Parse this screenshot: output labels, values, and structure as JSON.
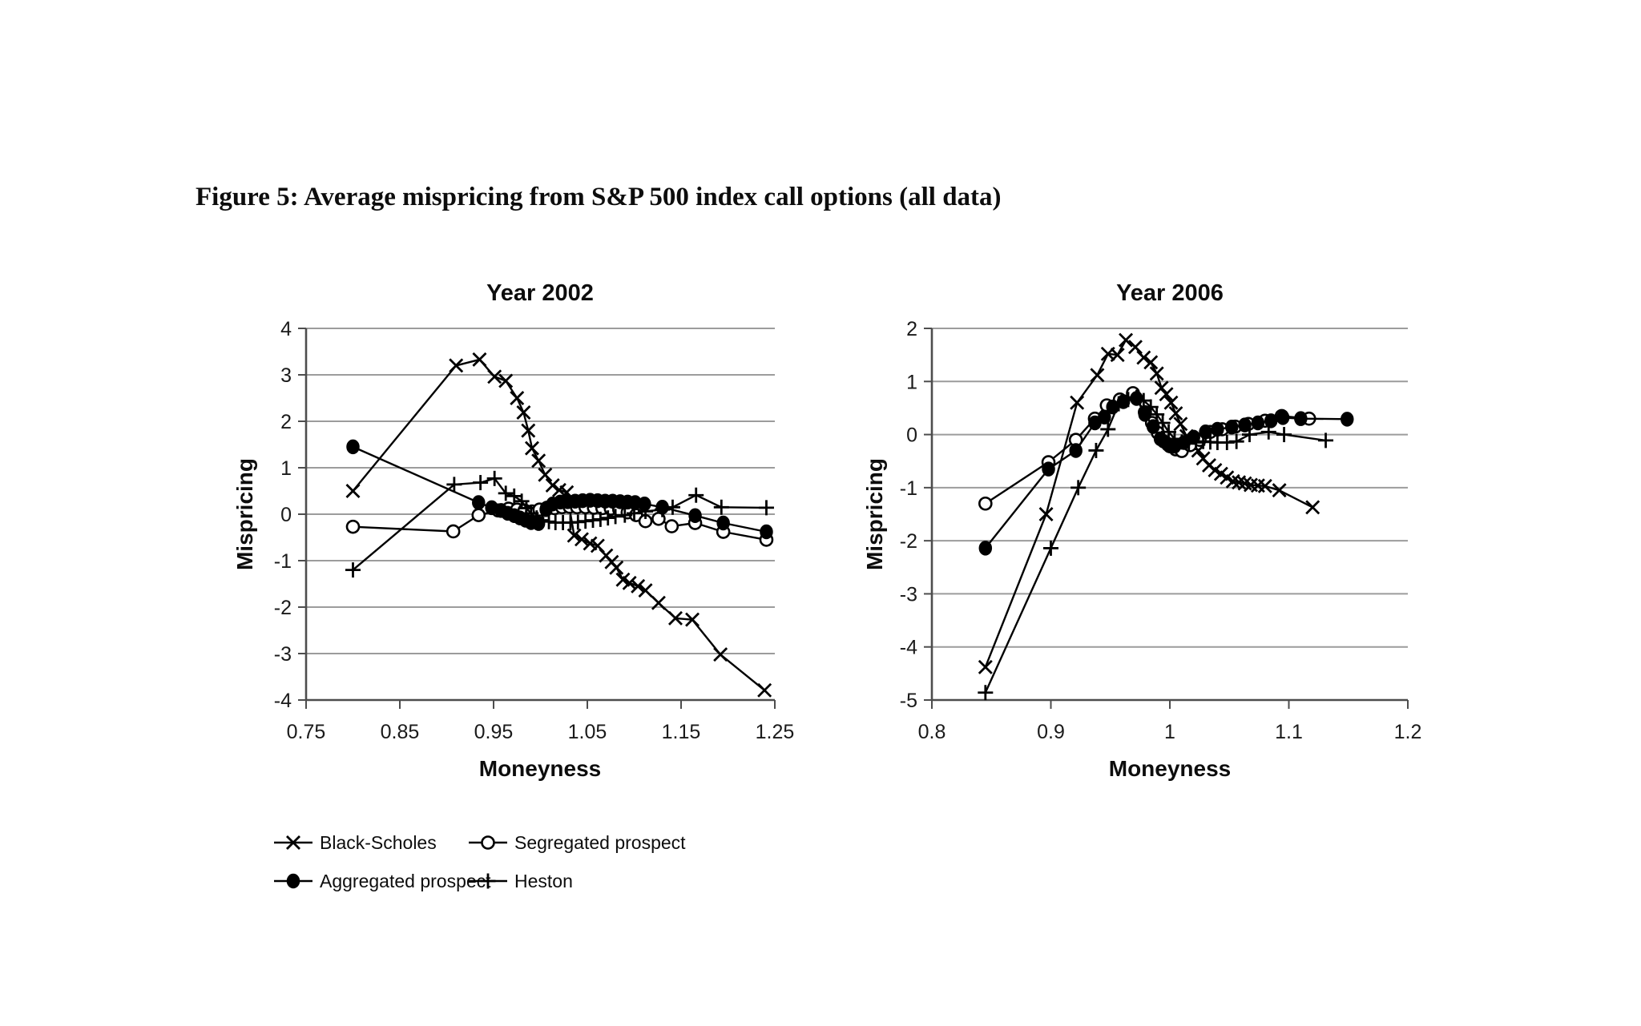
{
  "figure": {
    "title": "Figure 5: Average mispricing from S&P 500 index call options (all data)"
  },
  "colors": {
    "series": "#000000",
    "gridline": "#9c9c9c",
    "axis": "#4d4d4d",
    "tick_text": "#1a1a1a",
    "background": "#ffffff"
  },
  "legend": {
    "items": [
      {
        "label": "Black-Scholes",
        "marker": "x"
      },
      {
        "label": "Segregated prospect",
        "marker": "circle-open"
      },
      {
        "label": "Aggregated prospect",
        "marker": "circle-filled"
      },
      {
        "label": "Heston",
        "marker": "plus"
      }
    ]
  },
  "chart_data": [
    {
      "type": "line",
      "title": "Year 2002",
      "xlabel": "Moneyness",
      "ylabel": "Mispricing",
      "xlim": [
        0.75,
        1.25
      ],
      "ylim": [
        -4,
        4
      ],
      "xticks": [
        "0.75",
        "0.85",
        "0.95",
        "1.05",
        "1.15",
        "1.25"
      ],
      "yticks": [
        4,
        3,
        2,
        1,
        0,
        -1,
        -2,
        -3,
        -4
      ],
      "grid": true,
      "legend_position": "below-left",
      "series": [
        {
          "name": "Black-Scholes",
          "marker": "x",
          "points": [
            [
              0.8,
              0.5
            ],
            [
              0.91,
              3.2
            ],
            [
              0.935,
              3.33
            ],
            [
              0.951,
              2.96
            ],
            [
              0.963,
              2.87
            ],
            [
              0.975,
              2.5
            ],
            [
              0.982,
              2.19
            ],
            [
              0.987,
              1.8
            ],
            [
              0.991,
              1.42
            ],
            [
              0.998,
              1.15
            ],
            [
              1.005,
              0.85
            ],
            [
              1.013,
              0.62
            ],
            [
              1.02,
              0.52
            ],
            [
              1.028,
              0.47
            ],
            [
              1.036,
              -0.46
            ],
            [
              1.044,
              -0.54
            ],
            [
              1.053,
              -0.63
            ],
            [
              1.061,
              -0.68
            ],
            [
              1.07,
              -0.89
            ],
            [
              1.076,
              -1.03
            ],
            [
              1.081,
              -1.15
            ],
            [
              1.088,
              -1.41
            ],
            [
              1.095,
              -1.48
            ],
            [
              1.104,
              -1.55
            ],
            [
              1.112,
              -1.64
            ],
            [
              1.126,
              -1.91
            ],
            [
              1.144,
              -2.24
            ],
            [
              1.162,
              -2.27
            ],
            [
              1.192,
              -3.02
            ],
            [
              1.239,
              -3.79
            ]
          ]
        },
        {
          "name": "Segregated prospect",
          "marker": "circle-open",
          "points": [
            [
              0.8,
              -0.27
            ],
            [
              0.907,
              -0.37
            ],
            [
              0.934,
              -0.02
            ],
            [
              0.955,
              0.08
            ],
            [
              0.966,
              0.12
            ],
            [
              0.975,
              0.1
            ],
            [
              0.983,
              0.08
            ],
            [
              0.991,
              0.06
            ],
            [
              0.999,
              0.1
            ],
            [
              1.007,
              0.14
            ],
            [
              1.015,
              0.13
            ],
            [
              1.023,
              0.15
            ],
            [
              1.031,
              0.16
            ],
            [
              1.039,
              0.15
            ],
            [
              1.048,
              0.15
            ],
            [
              1.057,
              0.14
            ],
            [
              1.066,
              0.13
            ],
            [
              1.075,
              0.12
            ],
            [
              1.084,
              0.1
            ],
            [
              1.093,
              0.04
            ],
            [
              1.102,
              -0.02
            ],
            [
              1.112,
              -0.15
            ],
            [
              1.126,
              -0.1
            ],
            [
              1.14,
              -0.26
            ],
            [
              1.165,
              -0.19
            ],
            [
              1.195,
              -0.38
            ],
            [
              1.241,
              -0.55
            ]
          ]
        },
        {
          "name": "Aggregated prospect",
          "marker": "circle-filled",
          "points": [
            [
              0.8,
              1.45
            ],
            [
              0.934,
              0.25
            ],
            [
              0.948,
              0.14
            ],
            [
              0.958,
              0.08
            ],
            [
              0.965,
              0.02
            ],
            [
              0.972,
              -0.03
            ],
            [
              0.978,
              -0.08
            ],
            [
              0.984,
              -0.13
            ],
            [
              0.99,
              -0.18
            ],
            [
              0.998,
              -0.2
            ],
            [
              1.006,
              0.1
            ],
            [
              1.013,
              0.22
            ],
            [
              1.021,
              0.26
            ],
            [
              1.029,
              0.27
            ],
            [
              1.037,
              0.28
            ],
            [
              1.045,
              0.29
            ],
            [
              1.053,
              0.3
            ],
            [
              1.061,
              0.29
            ],
            [
              1.069,
              0.28
            ],
            [
              1.077,
              0.28
            ],
            [
              1.085,
              0.27
            ],
            [
              1.093,
              0.26
            ],
            [
              1.101,
              0.25
            ],
            [
              1.111,
              0.22
            ],
            [
              1.13,
              0.15
            ],
            [
              1.165,
              -0.03
            ],
            [
              1.195,
              -0.19
            ],
            [
              1.241,
              -0.38
            ]
          ]
        },
        {
          "name": "Heston",
          "marker": "plus",
          "points": [
            [
              0.8,
              -1.2
            ],
            [
              0.908,
              0.64
            ],
            [
              0.936,
              0.68
            ],
            [
              0.951,
              0.77
            ],
            [
              0.963,
              0.45
            ],
            [
              0.972,
              0.39
            ],
            [
              0.98,
              0.28
            ],
            [
              0.985,
              0.13
            ],
            [
              0.99,
              0.02
            ],
            [
              0.996,
              -0.08
            ],
            [
              1.002,
              -0.13
            ],
            [
              1.009,
              -0.16
            ],
            [
              1.016,
              -0.18
            ],
            [
              1.024,
              -0.18
            ],
            [
              1.032,
              -0.18
            ],
            [
              1.04,
              -0.17
            ],
            [
              1.048,
              -0.15
            ],
            [
              1.056,
              -0.13
            ],
            [
              1.064,
              -0.11
            ],
            [
              1.072,
              -0.08
            ],
            [
              1.08,
              -0.05
            ],
            [
              1.09,
              -0.02
            ],
            [
              1.1,
              0.02
            ],
            [
              1.112,
              0.06
            ],
            [
              1.13,
              0.1
            ],
            [
              1.141,
              0.15
            ],
            [
              1.166,
              0.41
            ],
            [
              1.193,
              0.15
            ],
            [
              1.241,
              0.14
            ]
          ]
        }
      ]
    },
    {
      "type": "line",
      "title": "Year 2006",
      "xlabel": "Moneyness",
      "ylabel": "Mispricing",
      "xlim": [
        0.8,
        1.2
      ],
      "ylim": [
        -5,
        2
      ],
      "xticks": [
        "0.8",
        "0.9",
        "1",
        "1.1",
        "1.2"
      ],
      "yticks": [
        2,
        1,
        0,
        -1,
        -2,
        -3,
        -4,
        -5
      ],
      "grid": true,
      "series": [
        {
          "name": "Black-Scholes",
          "marker": "x",
          "points": [
            [
              0.845,
              -4.38
            ],
            [
              0.896,
              -1.5
            ],
            [
              0.922,
              0.6
            ],
            [
              0.939,
              1.12
            ],
            [
              0.948,
              1.52
            ],
            [
              0.956,
              1.5
            ],
            [
              0.963,
              1.78
            ],
            [
              0.971,
              1.65
            ],
            [
              0.978,
              1.45
            ],
            [
              0.984,
              1.36
            ],
            [
              0.989,
              1.15
            ],
            [
              0.993,
              0.88
            ],
            [
              0.997,
              0.76
            ],
            [
              1.001,
              0.6
            ],
            [
              1.005,
              0.4
            ],
            [
              1.009,
              0.2
            ],
            [
              1.014,
              -0.03
            ],
            [
              1.019,
              -0.2
            ],
            [
              1.024,
              -0.3
            ],
            [
              1.028,
              -0.45
            ],
            [
              1.033,
              -0.58
            ],
            [
              1.038,
              -0.67
            ],
            [
              1.043,
              -0.74
            ],
            [
              1.048,
              -0.81
            ],
            [
              1.053,
              -0.88
            ],
            [
              1.058,
              -0.9
            ],
            [
              1.063,
              -0.92
            ],
            [
              1.068,
              -0.95
            ],
            [
              1.074,
              -0.96
            ],
            [
              1.08,
              -0.97
            ],
            [
              1.092,
              -1.05
            ],
            [
              1.12,
              -1.37
            ]
          ]
        },
        {
          "name": "Segregated prospect",
          "marker": "circle-open",
          "points": [
            [
              0.845,
              -1.3
            ],
            [
              0.898,
              -0.52
            ],
            [
              0.921,
              -0.1
            ],
            [
              0.937,
              0.3
            ],
            [
              0.947,
              0.55
            ],
            [
              0.958,
              0.66
            ],
            [
              0.969,
              0.78
            ],
            [
              0.979,
              0.42
            ],
            [
              0.985,
              0.22
            ],
            [
              0.99,
              0.03
            ],
            [
              0.995,
              -0.13
            ],
            [
              1.0,
              -0.22
            ],
            [
              1.005,
              -0.28
            ],
            [
              1.01,
              -0.31
            ],
            [
              1.017,
              -0.2
            ],
            [
              1.025,
              -0.1
            ],
            [
              1.034,
              0.05
            ],
            [
              1.044,
              0.1
            ],
            [
              1.055,
              0.15
            ],
            [
              1.066,
              0.2
            ],
            [
              1.08,
              0.26
            ],
            [
              1.094,
              0.35
            ],
            [
              1.117,
              0.3
            ]
          ]
        },
        {
          "name": "Aggregated prospect",
          "marker": "circle-filled",
          "points": [
            [
              0.845,
              -2.14
            ],
            [
              0.898,
              -0.65
            ],
            [
              0.921,
              -0.3
            ],
            [
              0.937,
              0.22
            ],
            [
              0.945,
              0.33
            ],
            [
              0.952,
              0.52
            ],
            [
              0.961,
              0.62
            ],
            [
              0.972,
              0.68
            ],
            [
              0.979,
              0.38
            ],
            [
              0.986,
              0.15
            ],
            [
              0.992,
              -0.08
            ],
            [
              0.998,
              -0.18
            ],
            [
              1.004,
              -0.22
            ],
            [
              1.012,
              -0.15
            ],
            [
              1.02,
              -0.05
            ],
            [
              1.03,
              0.05
            ],
            [
              1.04,
              0.1
            ],
            [
              1.052,
              0.14
            ],
            [
              1.063,
              0.18
            ],
            [
              1.074,
              0.22
            ],
            [
              1.085,
              0.26
            ],
            [
              1.095,
              0.32
            ],
            [
              1.11,
              0.3
            ],
            [
              1.149,
              0.29
            ]
          ]
        },
        {
          "name": "Heston",
          "marker": "plus",
          "points": [
            [
              0.845,
              -4.86
            ],
            [
              0.9,
              -2.14
            ],
            [
              0.923,
              -1.0
            ],
            [
              0.938,
              -0.3
            ],
            [
              0.948,
              0.1
            ],
            [
              0.957,
              0.58
            ],
            [
              0.965,
              0.66
            ],
            [
              0.972,
              0.7
            ],
            [
              0.978,
              0.64
            ],
            [
              0.984,
              0.52
            ],
            [
              0.989,
              0.38
            ],
            [
              0.994,
              0.22
            ],
            [
              0.999,
              0.05
            ],
            [
              1.004,
              -0.08
            ],
            [
              1.01,
              -0.14
            ],
            [
              1.016,
              -0.17
            ],
            [
              1.022,
              -0.15
            ],
            [
              1.028,
              -0.13
            ],
            [
              1.034,
              -0.14
            ],
            [
              1.04,
              -0.15
            ],
            [
              1.048,
              -0.15
            ],
            [
              1.056,
              -0.13
            ],
            [
              1.067,
              0.0
            ],
            [
              1.083,
              0.05
            ],
            [
              1.096,
              0.0
            ],
            [
              1.131,
              -0.11
            ]
          ]
        }
      ]
    }
  ]
}
